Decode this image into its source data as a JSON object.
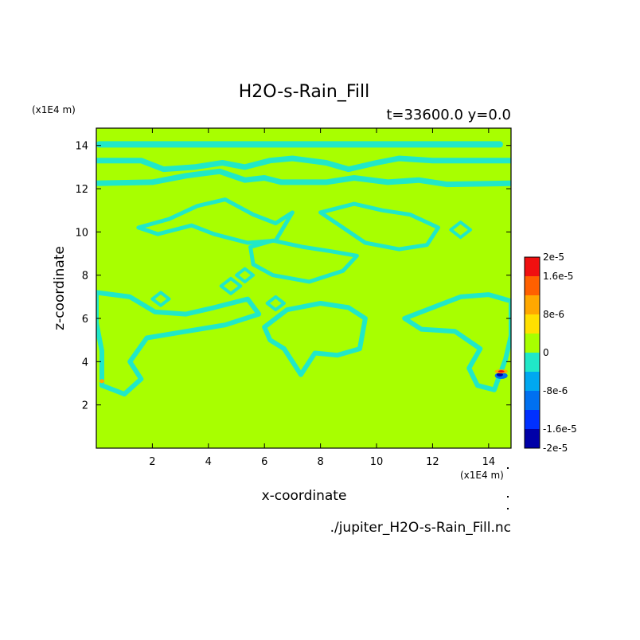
{
  "chart_data": {
    "type": "heatmap",
    "title": "H2O-s-Rain_Fill",
    "subtitle": "t=33600.0 y=0.0",
    "xlabel": "x-coordinate",
    "ylabel": "z-coordinate",
    "x_unit": "(x1E4 m)",
    "y_unit": "(x1E4 m)",
    "source_file": "./jupiter_H2O-s-Rain_Fill.nc",
    "xlim": [
      0,
      14.8
    ],
    "ylim": [
      0,
      14.8
    ],
    "x_ticks": [
      2,
      4,
      6,
      8,
      10,
      12,
      14
    ],
    "y_ticks": [
      2,
      4,
      6,
      8,
      10,
      12,
      14
    ],
    "colorbar": {
      "levels": [
        -2e-05,
        -1.6e-05,
        -1.2e-05,
        -8e-06,
        -4e-06,
        0,
        4e-06,
        8e-06,
        1.2e-05,
        1.6e-05,
        2e-05
      ],
      "tick_labels": [
        {
          "value": 2e-05,
          "label": "2e-5"
        },
        {
          "value": 1.6e-05,
          "label": "1.6e-5"
        },
        {
          "value": 8e-06,
          "label": "8e-6"
        },
        {
          "value": 0,
          "label": "0"
        },
        {
          "value": -8e-06,
          "label": "-8e-6"
        },
        {
          "value": -1.6e-05,
          "label": "-1.6e-5"
        },
        {
          "value": -2e-05,
          "label": "-2e-5"
        }
      ],
      "colors": [
        "#0000a8",
        "#0030ff",
        "#0070f0",
        "#00a8f0",
        "#20e8c8",
        "#a8ff00",
        "#ffe000",
        "#ffa800",
        "#ff6000",
        "#f01010"
      ]
    },
    "background_value_color": "#a8ff00",
    "contour_color": "#20e8c8",
    "features": {
      "bands": [
        {
          "z": 14.05,
          "x": [
            0.1,
            14.4
          ],
          "value": -2e-06
        },
        {
          "z": 13.3,
          "x": [
            0.0,
            14.8
          ],
          "value": -2e-06
        },
        {
          "z": 12.25,
          "x": [
            0.0,
            14.8
          ],
          "value": -2e-06
        }
      ],
      "patches": [
        {
          "x": 5.8,
          "z": 10.5,
          "value": -2e-06
        },
        {
          "x": 9.8,
          "z": 10.5,
          "value": -2e-06
        },
        {
          "x": 7.5,
          "z": 8.5,
          "value": -2e-06
        },
        {
          "x": 1.5,
          "z": 5.0,
          "value": -2e-06
        },
        {
          "x": 7.5,
          "z": 5.3,
          "value": -2e-06
        },
        {
          "x": 13.2,
          "z": 4.8,
          "value": -2e-06
        },
        {
          "x": 14.4,
          "z": 3.45,
          "value": 1.2e-05
        },
        {
          "x": 14.4,
          "z": 3.35,
          "value": -1.4e-05
        }
      ]
    }
  }
}
